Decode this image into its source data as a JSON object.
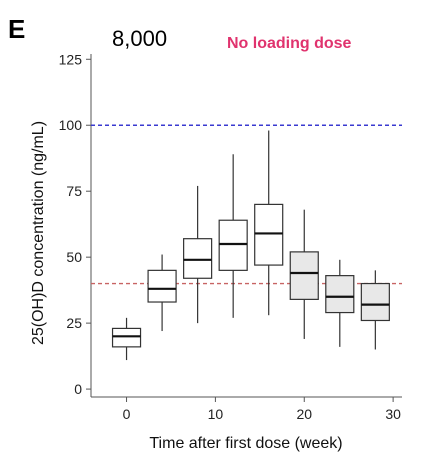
{
  "chart_data": {
    "type": "box",
    "panel_label": "E",
    "title": "8,000",
    "annotation": {
      "text": "No loading dose",
      "color": "#e0336e"
    },
    "xlabel": "Time after first dose (week)",
    "ylabel": "25(OH)D concentration (ng/mL)",
    "xlim": [
      -4,
      31
    ],
    "ylim": [
      -3,
      127
    ],
    "xticks": [
      0,
      10,
      20,
      30
    ],
    "yticks": [
      0,
      25,
      50,
      75,
      100,
      125
    ],
    "reference_lines": [
      {
        "y": 100,
        "style": "dashed",
        "color": "#3a3ad0"
      },
      {
        "y": 40,
        "style": "dashed",
        "color": "#c86464"
      }
    ],
    "boxes": [
      {
        "x": 0,
        "min": 11,
        "q1": 16,
        "median": 20,
        "q3": 23,
        "max": 27,
        "fill": "#ffffff"
      },
      {
        "x": 4,
        "min": 22,
        "q1": 33,
        "median": 38,
        "q3": 45,
        "max": 51,
        "fill": "#ffffff"
      },
      {
        "x": 8,
        "min": 25,
        "q1": 42,
        "median": 49,
        "q3": 57,
        "max": 77,
        "fill": "#ffffff"
      },
      {
        "x": 12,
        "min": 27,
        "q1": 45,
        "median": 55,
        "q3": 64,
        "max": 89,
        "fill": "#ffffff"
      },
      {
        "x": 16,
        "min": 28,
        "q1": 47,
        "median": 59,
        "q3": 70,
        "max": 98,
        "fill": "#ffffff"
      },
      {
        "x": 20,
        "min": 19,
        "q1": 34,
        "median": 44,
        "q3": 52,
        "max": 68,
        "fill": "#e8e8e8"
      },
      {
        "x": 24,
        "min": 16,
        "q1": 29,
        "median": 35,
        "q3": 43,
        "max": 49,
        "fill": "#e8e8e8"
      },
      {
        "x": 28,
        "min": 15,
        "q1": 26,
        "median": 32,
        "q3": 40,
        "max": 45,
        "fill": "#e8e8e8"
      }
    ]
  }
}
